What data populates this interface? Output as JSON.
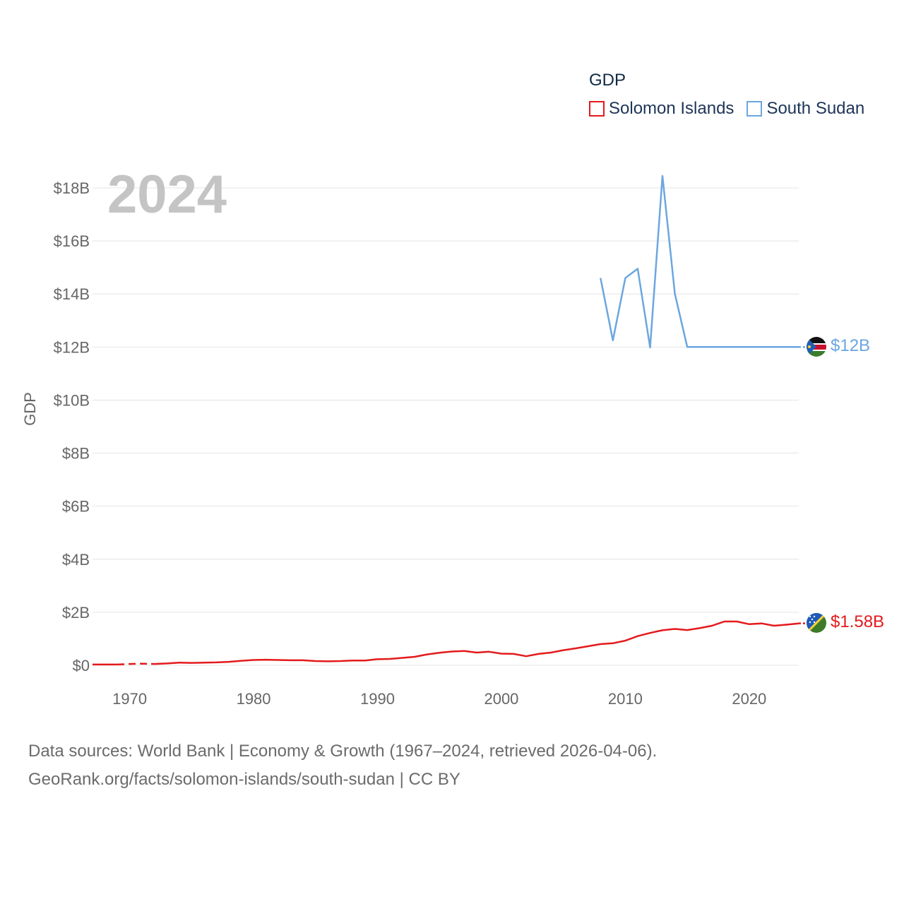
{
  "chart_data": {
    "type": "line",
    "title": "GDP",
    "year_label": "2024",
    "ylabel": "GDP",
    "xlim": [
      1967,
      2024
    ],
    "ylim": [
      0,
      18
    ],
    "x_ticks": [
      1970,
      1980,
      1990,
      2000,
      2010,
      2020
    ],
    "y_ticks": [
      {
        "value": 0,
        "label": "$0"
      },
      {
        "value": 2,
        "label": "$2B"
      },
      {
        "value": 4,
        "label": "$4B"
      },
      {
        "value": 6,
        "label": "$6B"
      },
      {
        "value": 8,
        "label": "$8B"
      },
      {
        "value": 10,
        "label": "$10B"
      },
      {
        "value": 12,
        "label": "$12B"
      },
      {
        "value": 14,
        "label": "$14B"
      },
      {
        "value": 16,
        "label": "$16B"
      },
      {
        "value": 18,
        "label": "$18B"
      }
    ],
    "legend_position": "top-right",
    "series": [
      {
        "name": "Solomon Islands",
        "color": "#e41a1c",
        "end_label": "$1.58B",
        "gap_years": [
          1969,
          1972
        ],
        "x": [
          1967,
          1968,
          1969,
          1970,
          1971,
          1972,
          1973,
          1974,
          1975,
          1976,
          1977,
          1978,
          1979,
          1980,
          1981,
          1982,
          1983,
          1984,
          1985,
          1986,
          1987,
          1988,
          1989,
          1990,
          1991,
          1992,
          1993,
          1994,
          1995,
          1996,
          1997,
          1998,
          1999,
          2000,
          2001,
          2002,
          2003,
          2004,
          2005,
          2006,
          2007,
          2008,
          2009,
          2010,
          2011,
          2012,
          2013,
          2014,
          2015,
          2016,
          2017,
          2018,
          2019,
          2020,
          2021,
          2022,
          2023,
          2024
        ],
        "values": [
          0.03,
          0.03,
          0.03,
          0.05,
          0.06,
          0.05,
          0.07,
          0.1,
          0.09,
          0.1,
          0.11,
          0.13,
          0.17,
          0.2,
          0.21,
          0.2,
          0.19,
          0.19,
          0.16,
          0.15,
          0.16,
          0.18,
          0.18,
          0.23,
          0.24,
          0.28,
          0.32,
          0.41,
          0.47,
          0.52,
          0.54,
          0.48,
          0.51,
          0.44,
          0.43,
          0.34,
          0.43,
          0.48,
          0.57,
          0.64,
          0.72,
          0.8,
          0.83,
          0.93,
          1.1,
          1.22,
          1.32,
          1.37,
          1.33,
          1.4,
          1.49,
          1.65,
          1.65,
          1.55,
          1.58,
          1.49,
          1.53,
          1.58
        ]
      },
      {
        "name": "South Sudan",
        "color": "#6ca6e0",
        "end_label": "$12B",
        "x": [
          2008,
          2009,
          2010,
          2011,
          2012,
          2013,
          2014,
          2015,
          2016,
          2017,
          2018,
          2019,
          2020,
          2021,
          2022,
          2023,
          2024
        ],
        "values": [
          14.6,
          12.25,
          14.6,
          14.95,
          11.98,
          18.45,
          14.0,
          12.0,
          12.0,
          12.0,
          12.0,
          12.0,
          12.0,
          12.0,
          12.0,
          12.0,
          12.0
        ]
      }
    ]
  },
  "footer": {
    "line1": "Data sources: World Bank | Economy & Growth (1967–2024, retrieved 2026-04-06).",
    "line2": "GeoRank.org/facts/solomon-islands/south-sudan | CC BY"
  }
}
